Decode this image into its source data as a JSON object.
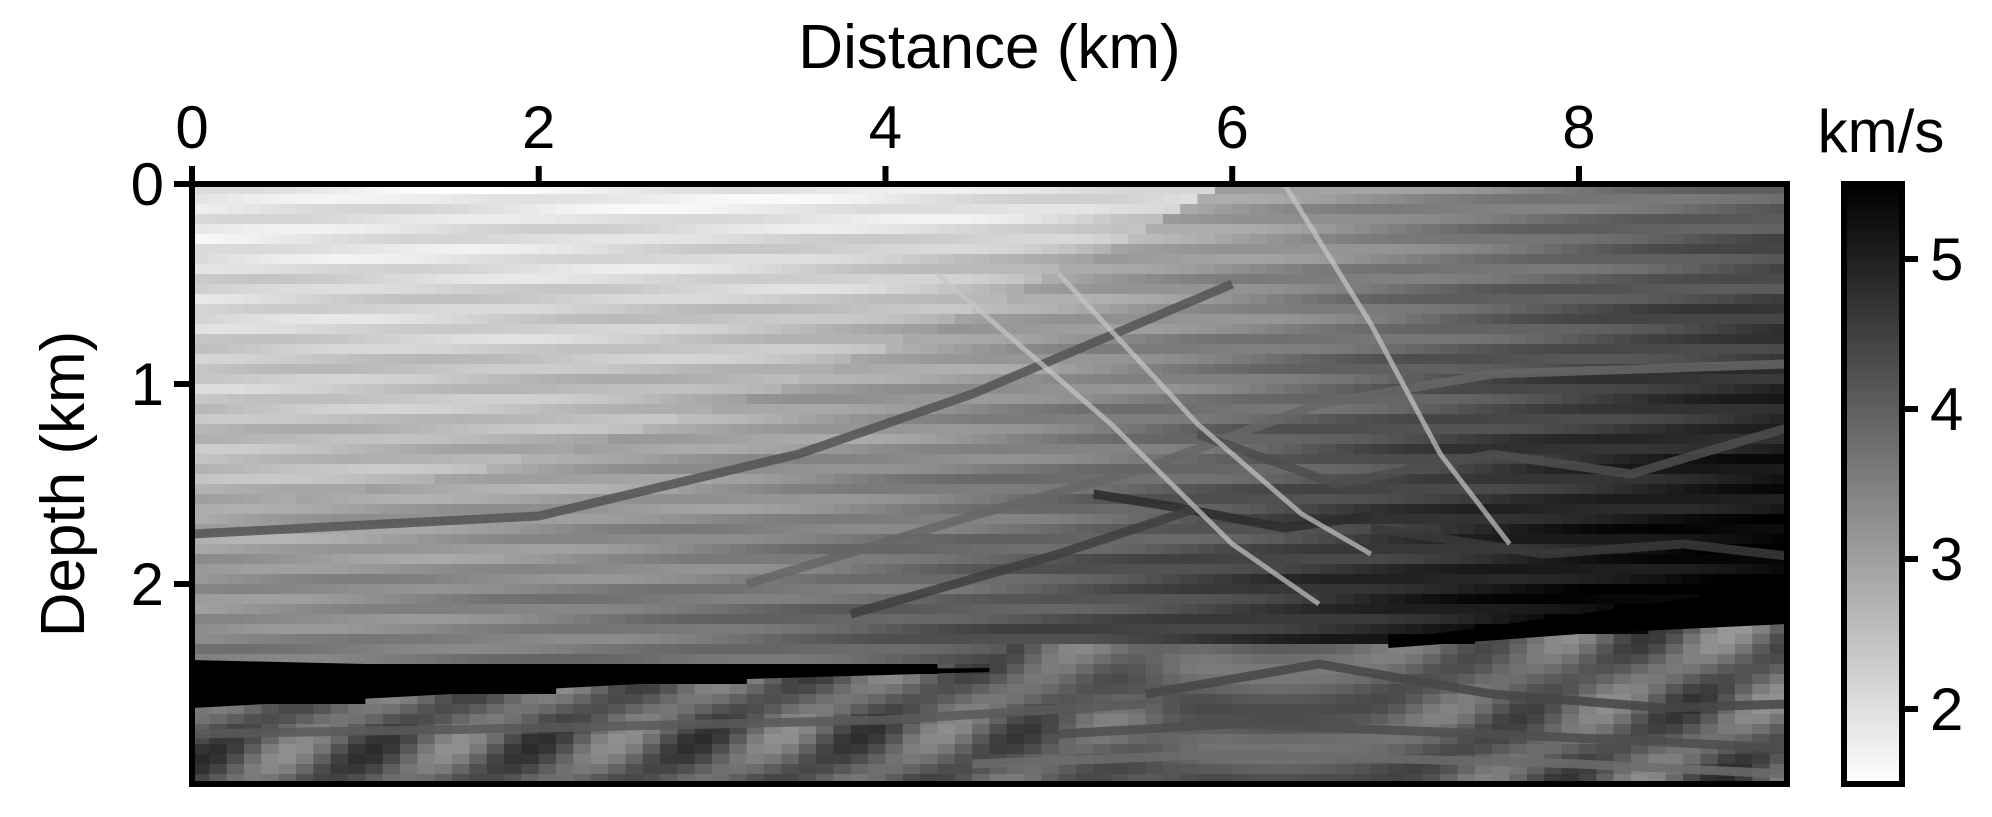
{
  "chart_data": {
    "type": "heatmap",
    "title": "",
    "xlabel": "Distance (km)",
    "ylabel": "Depth (km)",
    "xlim": [
      0,
      9.2
    ],
    "ylim": [
      0,
      3.0
    ],
    "y_inverted": true,
    "x_axis_position": "top",
    "grid": false,
    "x_ticks": [
      0,
      2,
      4,
      6,
      8
    ],
    "x_tick_labels": [
      "0",
      "2",
      "4",
      "6",
      "8"
    ],
    "y_ticks": [
      0,
      1,
      2
    ],
    "y_tick_labels": [
      "0",
      "1",
      "2"
    ],
    "colorbar": {
      "label": "km/s",
      "range": [
        1.5,
        5.5
      ],
      "ticks": [
        2,
        3,
        4,
        5
      ],
      "tick_labels": [
        "2",
        "3",
        "4",
        "5"
      ],
      "colormap": "grayscale",
      "low_color": "#ffffff",
      "high_color": "#000000",
      "placement": "right"
    },
    "salt_velocity": 5.5,
    "surfaces": [
      {
        "v": 4.2,
        "pts": [
          [
            0,
            1.75
          ],
          [
            2,
            1.66
          ],
          [
            3.5,
            1.35
          ],
          [
            4.5,
            1.05
          ],
          [
            5.4,
            0.72
          ],
          [
            6.0,
            0.5
          ]
        ]
      },
      {
        "v": 3.9,
        "pts": [
          [
            3.2,
            2.0
          ],
          [
            4.5,
            1.66
          ],
          [
            5.5,
            1.42
          ],
          [
            6.5,
            1.1
          ],
          [
            7.5,
            0.95
          ],
          [
            9.2,
            0.9
          ]
        ]
      },
      {
        "v": 4.3,
        "pts": [
          [
            5.8,
            1.25
          ],
          [
            6.6,
            1.5
          ],
          [
            7.5,
            1.35
          ],
          [
            8.3,
            1.45
          ],
          [
            9.2,
            1.22
          ]
        ]
      },
      {
        "v": 4.6,
        "pts": [
          [
            6.8,
            1.72
          ],
          [
            7.8,
            1.85
          ],
          [
            8.6,
            1.8
          ],
          [
            9.2,
            1.86
          ]
        ]
      },
      {
        "v": 4.8,
        "pts": [
          [
            5.2,
            1.55
          ],
          [
            5.7,
            1.62
          ],
          [
            6.3,
            1.72
          ],
          [
            6.8,
            1.66
          ]
        ]
      },
      {
        "v": 4.5,
        "pts": [
          [
            3.8,
            2.15
          ],
          [
            5.0,
            1.85
          ],
          [
            5.8,
            1.62
          ]
        ]
      },
      {
        "v": 4.1,
        "pts": [
          [
            0,
            2.75
          ],
          [
            2,
            2.72
          ],
          [
            4,
            2.68
          ],
          [
            5.5,
            2.6
          ]
        ]
      },
      {
        "v": 4.4,
        "pts": [
          [
            5.5,
            2.55
          ],
          [
            6.5,
            2.4
          ],
          [
            7.5,
            2.55
          ],
          [
            8.5,
            2.62
          ],
          [
            9.2,
            2.6
          ]
        ]
      },
      {
        "v": 4.3,
        "pts": [
          [
            5.0,
            2.75
          ],
          [
            6.0,
            2.7
          ],
          [
            7.5,
            2.75
          ],
          [
            9.2,
            2.82
          ]
        ]
      },
      {
        "v": 3.8,
        "pts": [
          [
            4.5,
            2.9
          ],
          [
            6.0,
            2.85
          ],
          [
            8.0,
            2.9
          ],
          [
            9.2,
            2.95
          ]
        ]
      }
    ],
    "faults": [
      {
        "pts": [
          [
            4.3,
            0.45
          ],
          [
            5.3,
            1.2
          ],
          [
            6.0,
            1.8
          ],
          [
            6.5,
            2.1
          ]
        ]
      },
      {
        "pts": [
          [
            5.0,
            0.45
          ],
          [
            5.8,
            1.2
          ],
          [
            6.4,
            1.65
          ],
          [
            6.8,
            1.85
          ]
        ]
      },
      {
        "pts": [
          [
            6.3,
            0.0
          ],
          [
            6.8,
            0.7
          ],
          [
            7.2,
            1.35
          ],
          [
            7.6,
            1.8
          ]
        ]
      }
    ]
  }
}
